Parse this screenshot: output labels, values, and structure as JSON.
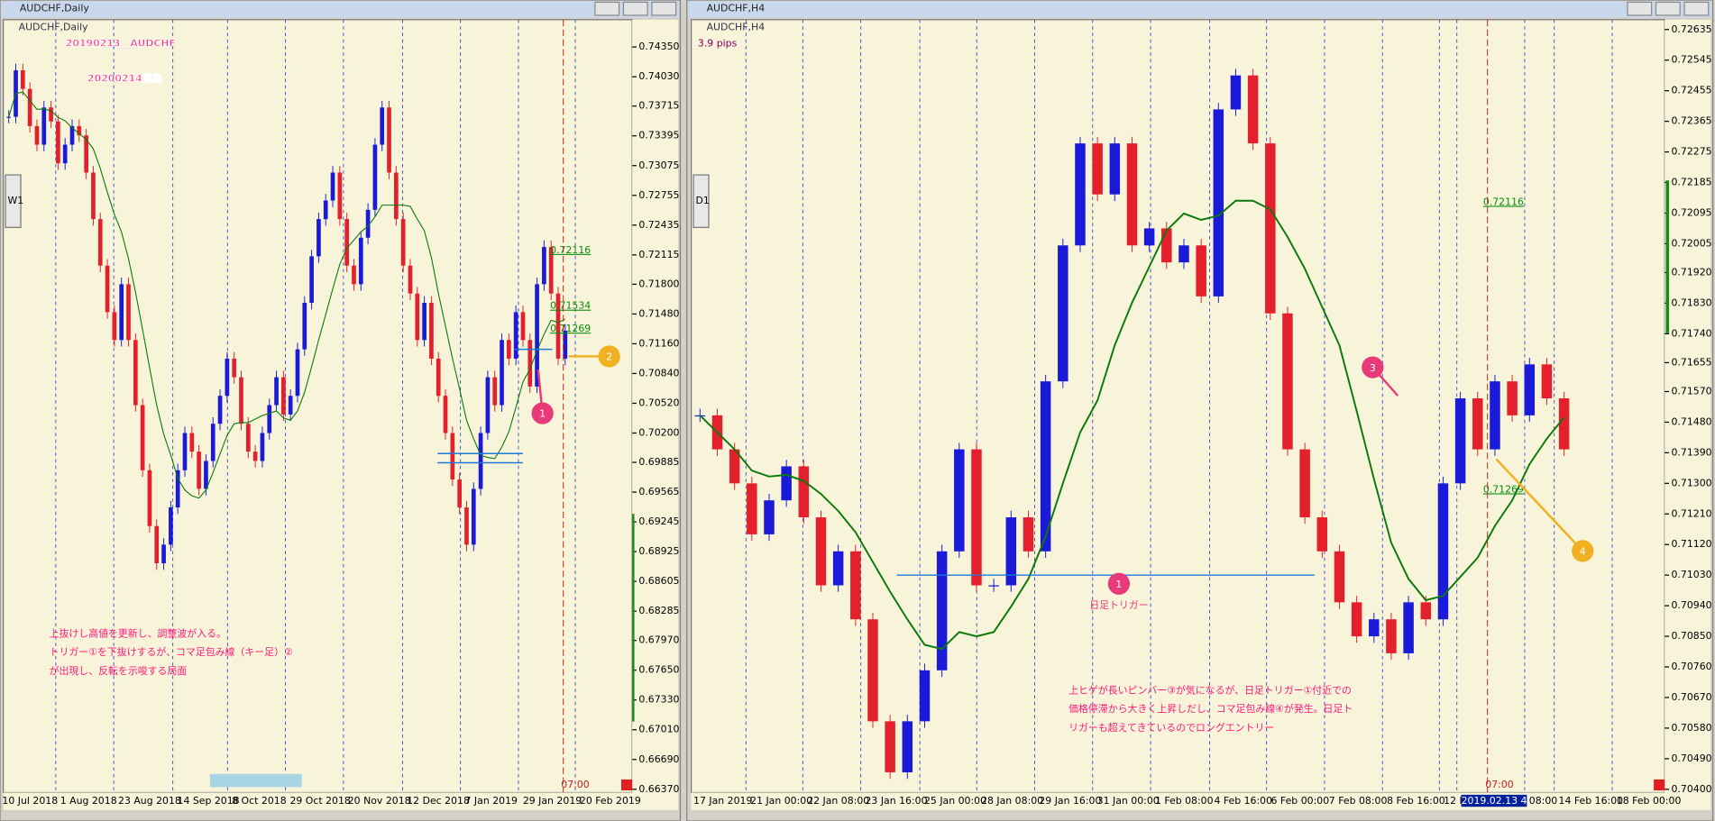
{
  "windows": [
    {
      "title": "AUDCHF,Daily",
      "chart_label": "AUDCHF,Daily",
      "period_button": "W1",
      "time_marker": "07:00",
      "headline": [
        "20190213__AUDCHF",
        "20200214実施"
      ],
      "price_ticks": [
        {
          "value": 0.7435,
          "label": "0.74350"
        },
        {
          "value": 0.7403,
          "label": "0.74030"
        },
        {
          "value": 0.73715,
          "label": "0.73715"
        },
        {
          "value": 0.73395,
          "label": "0.73395"
        },
        {
          "value": 0.73075,
          "label": "0.73075"
        },
        {
          "value": 0.72755,
          "label": "0.72755"
        },
        {
          "value": 0.72435,
          "label": "0.72435"
        },
        {
          "value": 0.72115,
          "label": "0.72115"
        },
        {
          "value": 0.718,
          "label": "0.71800"
        },
        {
          "value": 0.7148,
          "label": "0.71480"
        },
        {
          "value": 0.7116,
          "label": "0.71160"
        },
        {
          "value": 0.7084,
          "label": "0.70840"
        },
        {
          "value": 0.7052,
          "label": "0.70520"
        },
        {
          "value": 0.702,
          "label": "0.70200"
        },
        {
          "value": 0.69885,
          "label": "0.69885"
        },
        {
          "value": 0.69565,
          "label": "0.69565"
        },
        {
          "value": 0.69245,
          "label": "0.69245"
        },
        {
          "value": 0.68925,
          "label": "0.68925"
        },
        {
          "value": 0.68605,
          "label": "0.68605"
        },
        {
          "value": 0.68285,
          "label": "0.68285"
        },
        {
          "value": 0.6797,
          "label": "0.67970"
        },
        {
          "value": 0.6765,
          "label": "0.67650"
        },
        {
          "value": 0.6733,
          "label": "0.67330"
        },
        {
          "value": 0.6701,
          "label": "0.67010"
        },
        {
          "value": 0.6669,
          "label": "0.66690"
        },
        {
          "value": 0.6637,
          "label": "0.66370"
        }
      ],
      "time_labels": [
        "10 Jul 2018",
        "1 Aug 2018",
        "23 Aug 2018",
        "14 Sep 2018",
        "8 Oct 2018",
        "29 Oct 2018",
        "20 Nov 2018",
        "12 Dec 2018",
        "7 Jan 2019",
        "29 Jan 2019",
        "20 Feb 2019"
      ],
      "closes": [
        0.736,
        0.741,
        0.739,
        0.735,
        0.733,
        0.737,
        0.7355,
        0.731,
        0.733,
        0.735,
        0.734,
        0.73,
        0.725,
        0.72,
        0.715,
        0.712,
        0.718,
        0.712,
        0.705,
        0.698,
        0.692,
        0.688,
        0.69,
        0.694,
        0.698,
        0.702,
        0.7,
        0.696,
        0.699,
        0.703,
        0.706,
        0.71,
        0.708,
        0.703,
        0.7,
        0.699,
        0.702,
        0.705,
        0.708,
        0.704,
        0.706,
        0.711,
        0.716,
        0.721,
        0.725,
        0.727,
        0.73,
        0.725,
        0.72,
        0.718,
        0.723,
        0.726,
        0.733,
        0.737,
        0.73,
        0.725,
        0.72,
        0.717,
        0.712,
        0.716,
        0.71,
        0.706,
        0.702,
        0.697,
        0.694,
        0.69,
        0.696,
        0.702,
        0.708,
        0.705,
        0.712,
        0.71,
        0.715,
        0.712,
        0.707,
        0.718,
        0.722,
        0.717,
        0.71,
        0.713
      ],
      "levels": [
        0.6998,
        0.6988,
        0.711
      ],
      "level_labels": [
        "0.72116",
        "0.71534",
        "0.71269"
      ],
      "markers": [
        "1",
        "2"
      ],
      "note_lines": [
        "上抜けし高値を更新し、調整波が入る。",
        "トリガー①を下抜けするが、コマ足包み線（キー足）②",
        "が出現し、反転を示唆する局面"
      ]
    },
    {
      "title": "AUDCHF,H4",
      "chart_label": "AUDCHF,H4",
      "period_button": "D1",
      "time_marker": "07:00",
      "headline": [
        "3.9 pips"
      ],
      "price_ticks": [
        {
          "value": 0.72635,
          "label": "0.72635"
        },
        {
          "value": 0.72545,
          "label": "0.72545"
        },
        {
          "value": 0.72455,
          "label": "0.72455"
        },
        {
          "value": 0.72365,
          "label": "0.72365"
        },
        {
          "value": 0.72275,
          "label": "0.72275"
        },
        {
          "value": 0.72185,
          "label": "0.72185"
        },
        {
          "value": 0.72095,
          "label": "0.72095"
        },
        {
          "value": 0.72005,
          "label": "0.72005"
        },
        {
          "value": 0.7192,
          "label": "0.71920"
        },
        {
          "value": 0.7183,
          "label": "0.71830"
        },
        {
          "value": 0.7174,
          "label": "0.71740"
        },
        {
          "value": 0.71655,
          "label": "0.71655"
        },
        {
          "value": 0.7157,
          "label": "0.71570"
        },
        {
          "value": 0.7148,
          "label": "0.71480"
        },
        {
          "value": 0.7139,
          "label": "0.71390"
        },
        {
          "value": 0.713,
          "label": "0.71300"
        },
        {
          "value": 0.7121,
          "label": "0.71210"
        },
        {
          "value": 0.7112,
          "label": "0.71120"
        },
        {
          "value": 0.7103,
          "label": "0.71030"
        },
        {
          "value": 0.7094,
          "label": "0.70940"
        },
        {
          "value": 0.7085,
          "label": "0.70850"
        },
        {
          "value": 0.7076,
          "label": "0.70760"
        },
        {
          "value": 0.7067,
          "label": "0.70670"
        },
        {
          "value": 0.7058,
          "label": "0.70580"
        },
        {
          "value": 0.7049,
          "label": "0.70490"
        },
        {
          "value": 0.704,
          "label": "0.70400"
        }
      ],
      "time_labels": [
        "17 Jan 2019",
        "21 Jan 00:00",
        "22 Jan 08:00",
        "23 Jan 16:00",
        "25 Jan 00:00",
        "28 Jan 08:00",
        "29 Jan 16:00",
        "31 Jan 00:00",
        "1 Feb 08:00",
        "4 Feb 16:00",
        "6 Feb 00:00",
        "7 Feb 08:00",
        "8 Feb 16:00",
        "12 F",
        "2019.02.13 4:00",
        "08:00",
        "14 Feb 16:00",
        "18 Feb 00:00"
      ],
      "closes": [
        0.715,
        0.714,
        0.713,
        0.7115,
        0.7125,
        0.7135,
        0.712,
        0.71,
        0.711,
        0.709,
        0.706,
        0.7045,
        0.706,
        0.7075,
        0.711,
        0.714,
        0.71,
        0.71,
        0.712,
        0.711,
        0.716,
        0.72,
        0.723,
        0.7215,
        0.723,
        0.72,
        0.7205,
        0.7195,
        0.72,
        0.7185,
        0.724,
        0.725,
        0.723,
        0.718,
        0.714,
        0.712,
        0.711,
        0.7095,
        0.7085,
        0.709,
        0.708,
        0.7095,
        0.709,
        0.713,
        0.7155,
        0.714,
        0.716,
        0.715,
        0.7165,
        0.7155,
        0.714
      ],
      "levels": [
        0.7103
      ],
      "level_labels": [
        "0.72116",
        "0.71269"
      ],
      "markers": [
        "1",
        "3",
        "4"
      ],
      "marker_caption": "日足トリガー",
      "note_lines": [
        "上ヒゲが長いピンバー③が気になるが、日足トリガー①付近での",
        "価格停滞から大きく上昇しだし、コマ足包み線④が発生。日足ト",
        "リガーも超えてきているのでロングエントリー"
      ]
    }
  ]
}
